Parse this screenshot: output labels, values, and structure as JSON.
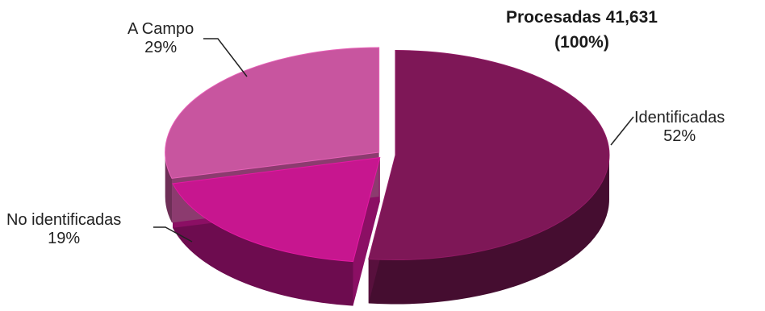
{
  "chart_data": {
    "type": "pie",
    "title": "Procesadas 41,631",
    "subtitle": "(100%)",
    "slices": [
      {
        "label": "Identificadas",
        "value": 52,
        "value_label": "52%",
        "color": "#7e1757"
      },
      {
        "label": "No identificadas",
        "value": 19,
        "value_label": "19%",
        "color": "#c7168f"
      },
      {
        "label": "A Campo",
        "value": 29,
        "value_label": "29%",
        "color": "#c8559f"
      }
    ],
    "style": "3d-exploded"
  }
}
